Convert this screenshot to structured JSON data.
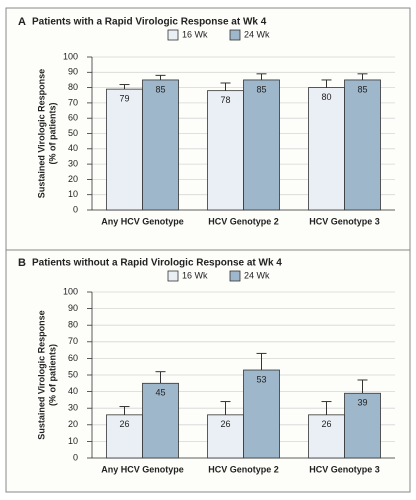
{
  "chart_data": [
    {
      "type": "bar",
      "panel": "A",
      "title": "Patients with a Rapid Virologic Response at Wk 4",
      "ylabel": [
        "Sustained Virologic Response",
        "(% of patients)"
      ],
      "categories": [
        "Any HCV Genotype",
        "HCV Genotype 2",
        "HCV Genotype 3"
      ],
      "series": [
        {
          "name": "16 Wk",
          "color": "#e9eff5",
          "values": [
            79,
            78,
            80
          ],
          "errors": [
            3,
            5,
            5
          ]
        },
        {
          "name": "24 Wk",
          "color": "#9fb7ca",
          "values": [
            85,
            85,
            85
          ],
          "errors": [
            3,
            4,
            4
          ]
        }
      ],
      "ylim": [
        0,
        100
      ],
      "yticks": [
        0,
        10,
        20,
        30,
        40,
        50,
        60,
        70,
        80,
        90,
        100
      ],
      "grid": true
    },
    {
      "type": "bar",
      "panel": "B",
      "title": "Patients without a Rapid Virologic Response at Wk 4",
      "ylabel": [
        "Sustained Virologic Response",
        "(% of patients)"
      ],
      "categories": [
        "Any HCV Genotype",
        "HCV Genotype 2",
        "HCV Genotype 3"
      ],
      "series": [
        {
          "name": "16 Wk",
          "color": "#e9eff5",
          "values": [
            26,
            26,
            26
          ],
          "errors": [
            5,
            8,
            8
          ]
        },
        {
          "name": "24 Wk",
          "color": "#9fb7ca",
          "values": [
            45,
            53,
            39
          ],
          "errors": [
            7,
            10,
            8
          ]
        }
      ],
      "ylim": [
        0,
        100
      ],
      "yticks": [
        0,
        10,
        20,
        30,
        40,
        50,
        60,
        70,
        80,
        90,
        100
      ],
      "grid": true
    }
  ]
}
